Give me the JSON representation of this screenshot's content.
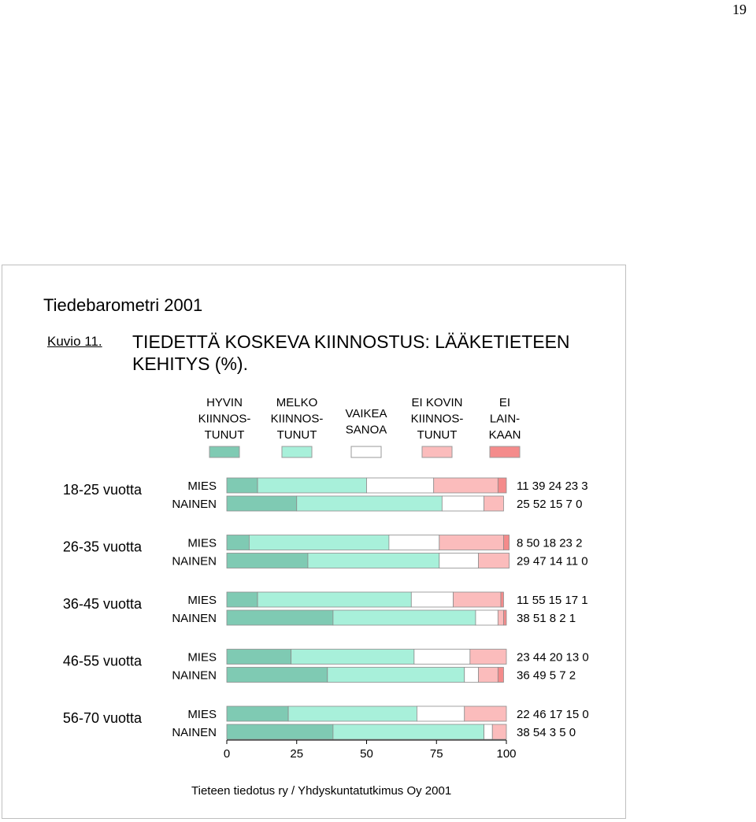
{
  "page": {
    "number": "19",
    "source_title": "Tiedebarometri 2001",
    "figure_label": "Kuvio 11.",
    "figure_title": "TIEDETTÄ KOSKEVA KIINNOSTUS: LÄÄKETIETEEN KEHITYS (%).",
    "footer": "Tieteen tiedotus ry / Yhdyskuntatutkimus Oy 2001"
  },
  "chart_data": {
    "type": "bar",
    "orientation": "horizontal",
    "stacked": true,
    "title": "TIEDETTÄ KOSKEVA KIINNOSTUS: LÄÄKETIETEEN KEHITYS (%).",
    "xlim": [
      0,
      100
    ],
    "x_ticks": [
      0,
      25,
      50,
      75,
      100
    ],
    "legend_position": "top",
    "series": [
      {
        "name_lines": [
          "HYVIN",
          "KIINNOS-",
          "TUNUT"
        ],
        "color": "#7fcab3"
      },
      {
        "name_lines": [
          "MELKO",
          "KIINNOS-",
          "TUNUT"
        ],
        "color": "#a8f0da"
      },
      {
        "name_lines": [
          "VAIKEA",
          "SANOA"
        ],
        "color": "#ffffff"
      },
      {
        "name_lines": [
          "EI KOVIN",
          "KIINNOS-",
          "TUNUT"
        ],
        "color": "#fbbcbc"
      },
      {
        "name_lines": [
          "EI",
          "LAIN-",
          "KAAN"
        ],
        "color": "#f48b8b"
      }
    ],
    "groups": [
      {
        "label": "18-25 vuotta",
        "rows": [
          {
            "label": "MIES",
            "values": [
              11,
              39,
              24,
              23,
              3
            ]
          },
          {
            "label": "NAINEN",
            "values": [
              25,
              52,
              15,
              7,
              0
            ]
          }
        ]
      },
      {
        "label": "26-35 vuotta",
        "rows": [
          {
            "label": "MIES",
            "values": [
              8,
              50,
              18,
              23,
              2
            ]
          },
          {
            "label": "NAINEN",
            "values": [
              29,
              47,
              14,
              11,
              0
            ]
          }
        ]
      },
      {
        "label": "36-45 vuotta",
        "rows": [
          {
            "label": "MIES",
            "values": [
              11,
              55,
              15,
              17,
              1
            ]
          },
          {
            "label": "NAINEN",
            "values": [
              38,
              51,
              8,
              2,
              1
            ]
          }
        ]
      },
      {
        "label": "46-55 vuotta",
        "rows": [
          {
            "label": "MIES",
            "values": [
              23,
              44,
              20,
              13,
              0
            ]
          },
          {
            "label": "NAINEN",
            "values": [
              36,
              49,
              5,
              7,
              2
            ]
          }
        ]
      },
      {
        "label": "56-70 vuotta",
        "rows": [
          {
            "label": "MIES",
            "values": [
              22,
              46,
              17,
              15,
              0
            ]
          },
          {
            "label": "NAINEN",
            "values": [
              38,
              54,
              3,
              5,
              0
            ]
          }
        ]
      }
    ]
  }
}
